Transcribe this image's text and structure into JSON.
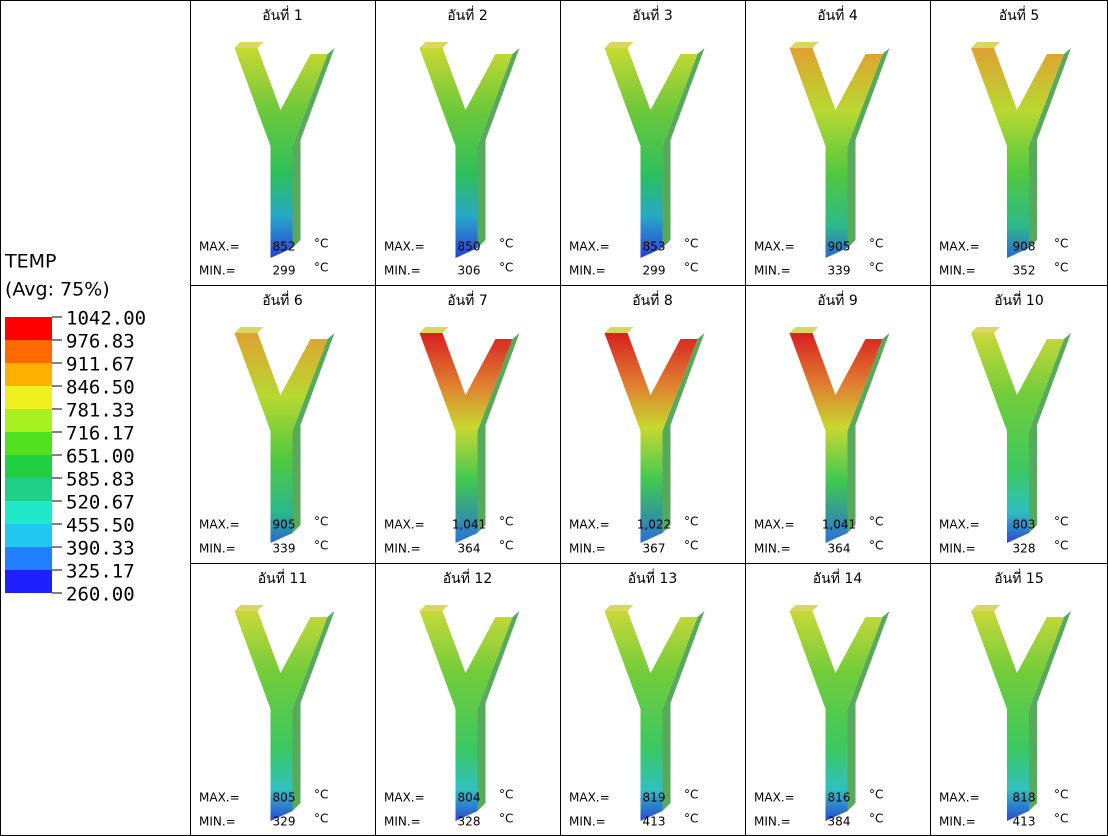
{
  "legend": {
    "title": "TEMP",
    "subtitle": "(Avg: 75%)",
    "levels": [
      "1042.00",
      "976.83",
      "911.67",
      "846.50",
      "781.33",
      "716.17",
      "651.00",
      "585.83",
      "520.67",
      "455.50",
      "390.33",
      "325.17",
      "260.00"
    ]
  },
  "labels": {
    "max": "MAX.=",
    "min": "MIN.=",
    "unit": "°C"
  },
  "cells": [
    {
      "title": "อันที่ 1",
      "max": "852",
      "min": "299"
    },
    {
      "title": "อันที่ 2",
      "max": "850",
      "min": "306"
    },
    {
      "title": "อันที่ 3",
      "max": "853",
      "min": "299"
    },
    {
      "title": "อันที่ 4",
      "max": "905",
      "min": "339"
    },
    {
      "title": "อันที่ 5",
      "max": "908",
      "min": "352"
    },
    {
      "title": "อันที่ 6",
      "max": "905",
      "min": "339"
    },
    {
      "title": "อันที่ 7",
      "max": "1,041",
      "min": "364"
    },
    {
      "title": "อันที่ 8",
      "max": "1,022",
      "min": "367"
    },
    {
      "title": "อันที่ 9",
      "max": "1,041",
      "min": "364"
    },
    {
      "title": "อันที่ 10",
      "max": "803",
      "min": "328"
    },
    {
      "title": "อันที่ 11",
      "max": "805",
      "min": "329"
    },
    {
      "title": "อันที่ 12",
      "max": "804",
      "min": "328"
    },
    {
      "title": "อันที่ 13",
      "max": "819",
      "min": "413"
    },
    {
      "title": "อันที่ 14",
      "max": "816",
      "min": "384"
    },
    {
      "title": "อันที่ 15",
      "max": "818",
      "min": "413"
    }
  ]
}
